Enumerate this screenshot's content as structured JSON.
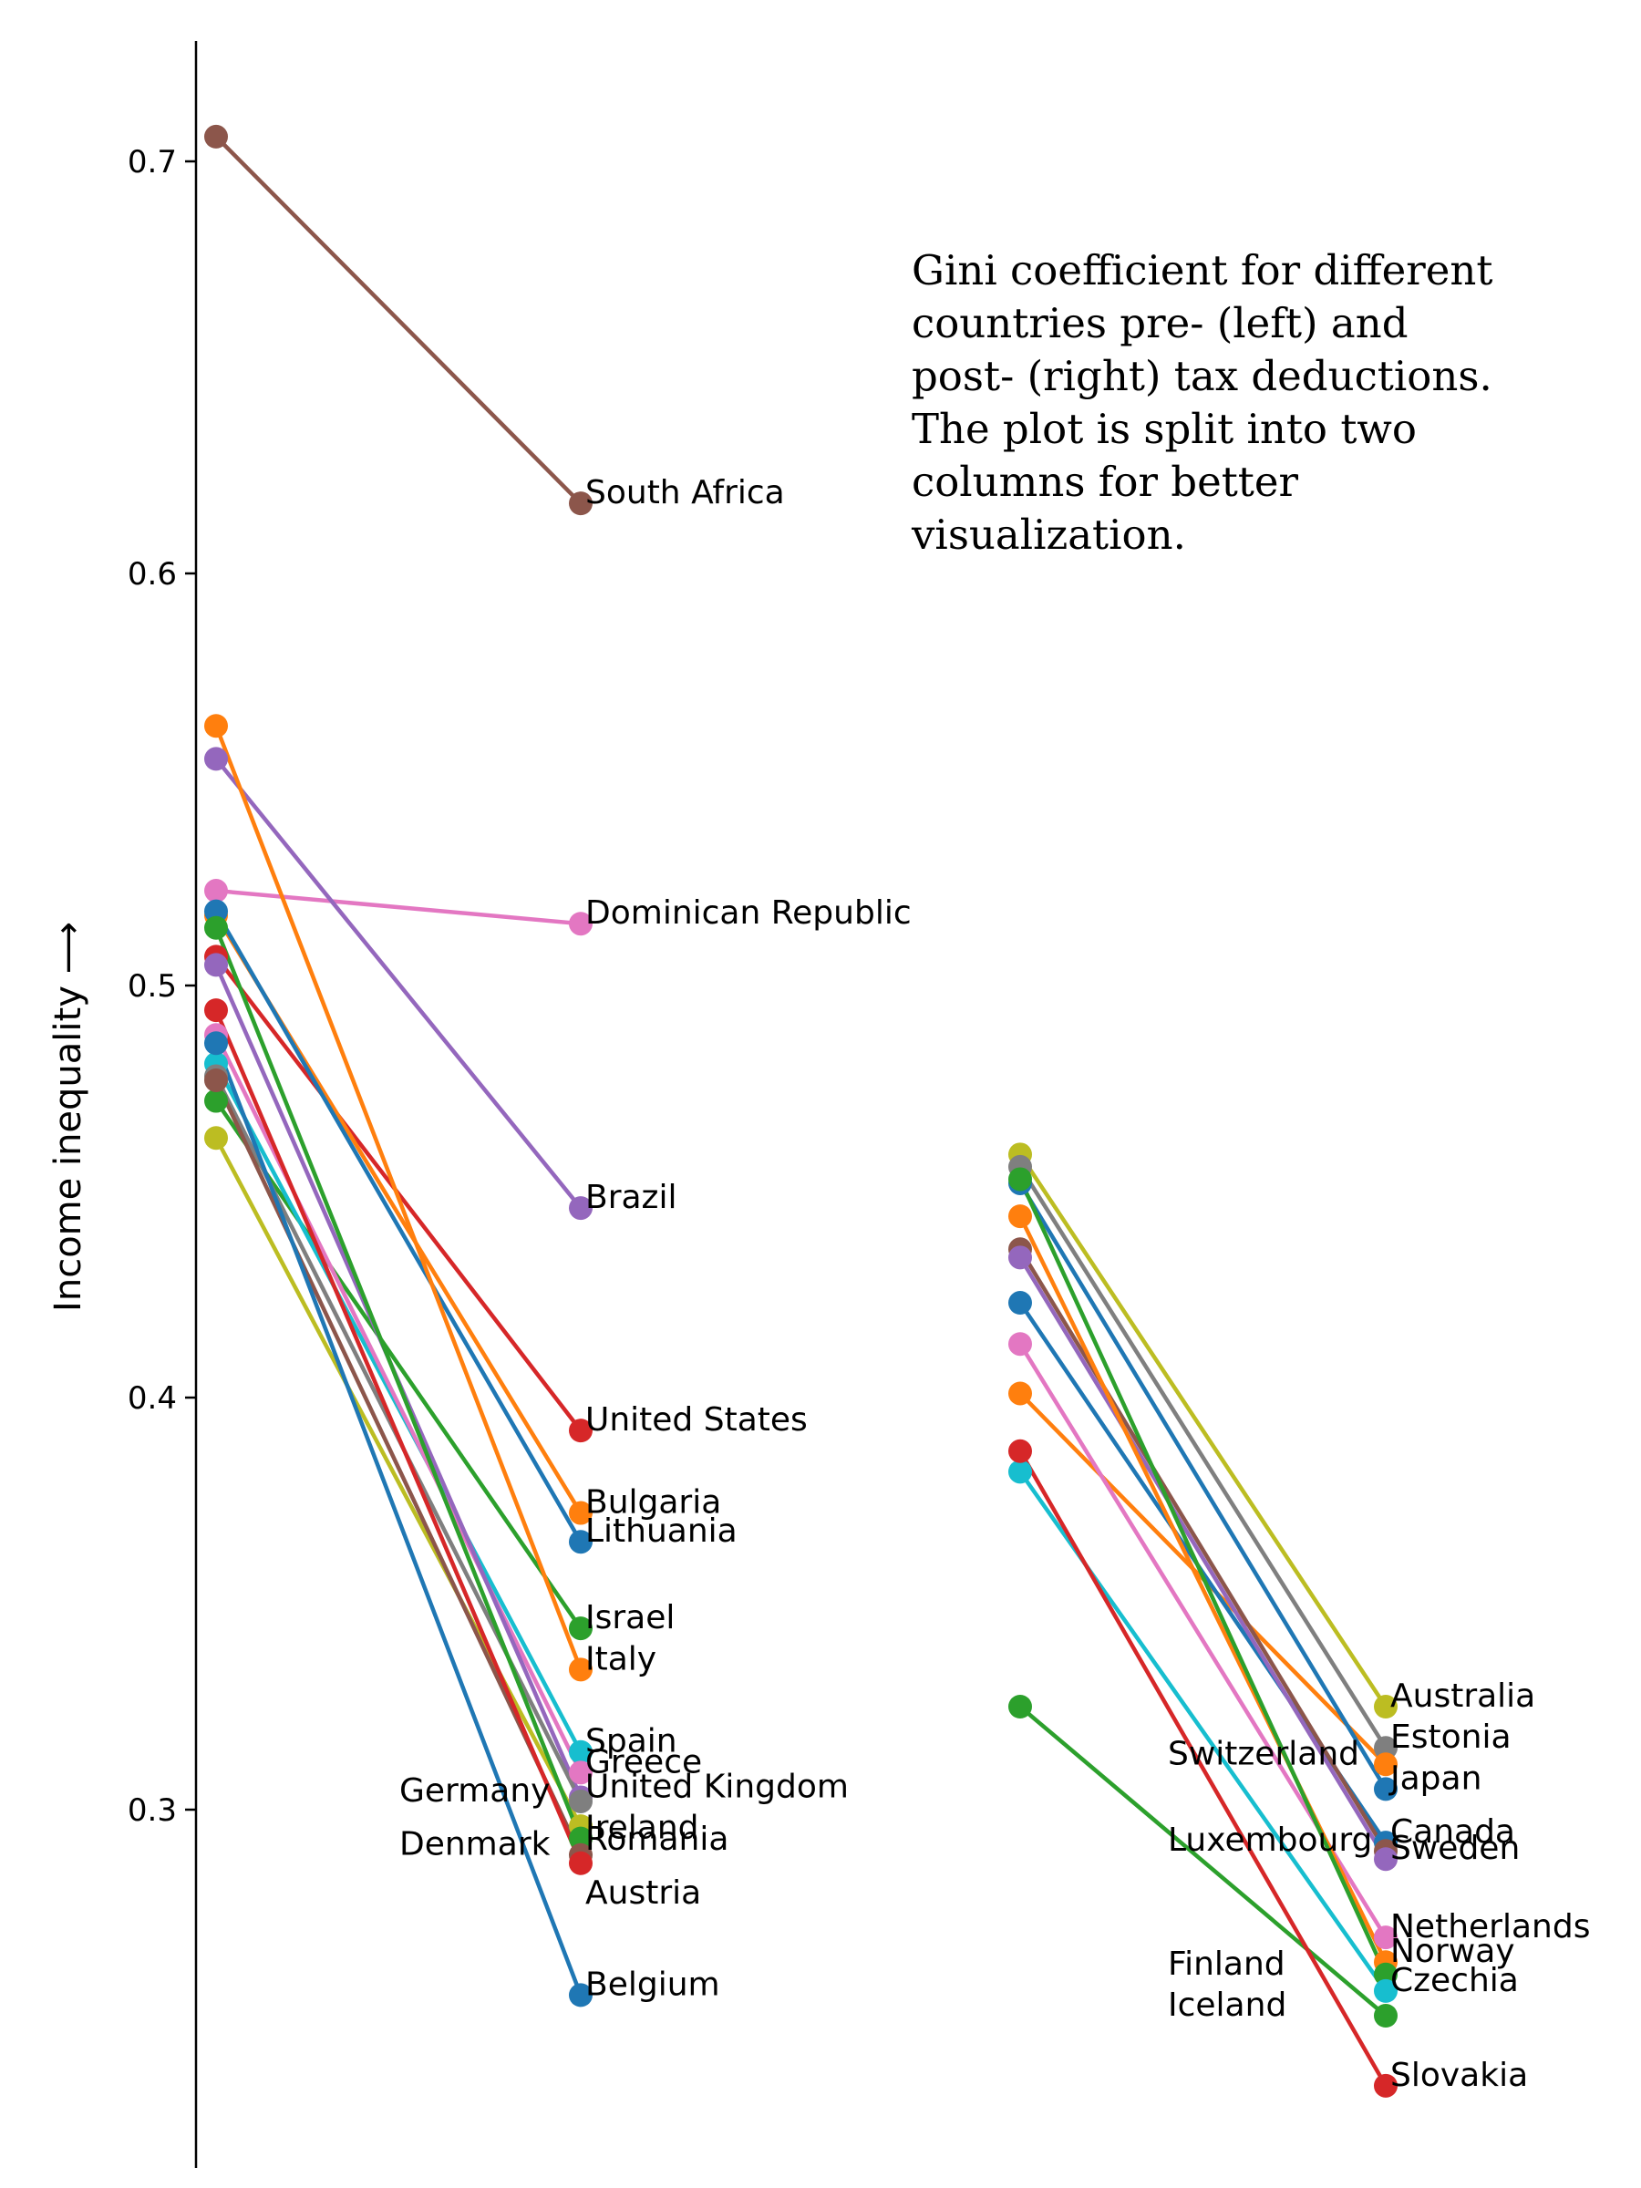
{
  "chart_data": {
    "type": "line",
    "ylabel": "Income inequality ⟶",
    "yticks": [
      0.3,
      0.4,
      0.5,
      0.6,
      0.7
    ],
    "ylim": [
      0.22,
      0.73
    ],
    "annotation": [
      "Gini coefficient for different",
      "countries pre- (left) and",
      "post- (right) tax deductions.",
      "The plot is split into two",
      "columns for better",
      "visualization."
    ],
    "groups": [
      {
        "side": "left",
        "series": [
          {
            "name": "South Africa",
            "pre": 0.706,
            "post": 0.617,
            "color": "#8c564b"
          },
          {
            "name": "Dominican Republic",
            "pre": 0.523,
            "post": 0.515,
            "color": "#e377c2"
          },
          {
            "name": "Brazil",
            "pre": 0.555,
            "post": 0.446,
            "color": "#9467bd"
          },
          {
            "name": "United States",
            "pre": 0.507,
            "post": 0.392,
            "color": "#d62728"
          },
          {
            "name": "Bulgaria",
            "pre": 0.517,
            "post": 0.372,
            "color": "#ff7f0e"
          },
          {
            "name": "Lithuania",
            "pre": 0.518,
            "post": 0.365,
            "color": "#1f77b4"
          },
          {
            "name": "Israel",
            "pre": 0.472,
            "post": 0.344,
            "color": "#2ca02c"
          },
          {
            "name": "Italy",
            "pre": 0.563,
            "post": 0.334,
            "color": "#ff7f0e"
          },
          {
            "name": "Spain",
            "pre": 0.481,
            "post": 0.314,
            "color": "#17becf"
          },
          {
            "name": "Greece",
            "pre": 0.488,
            "post": 0.309,
            "color": "#e377c2"
          },
          {
            "name": "United Kingdom",
            "pre": 0.505,
            "post": 0.303,
            "color": "#9467bd"
          },
          {
            "name": "Germany",
            "pre": 0.478,
            "post": 0.302,
            "color": "#7f7f7f"
          },
          {
            "name": "Romania",
            "pre": 0.463,
            "post": 0.296,
            "color": "#bcbd22"
          },
          {
            "name": "Ireland",
            "pre": 0.514,
            "post": 0.293,
            "color": "#2ca02c"
          },
          {
            "name": "Denmark",
            "pre": 0.477,
            "post": 0.289,
            "color": "#8c564b"
          },
          {
            "name": "Austria",
            "pre": 0.494,
            "post": 0.287,
            "color": "#d62728"
          },
          {
            "name": "Belgium",
            "pre": 0.486,
            "post": 0.255,
            "color": "#1f77b4"
          }
        ]
      },
      {
        "side": "right",
        "series": [
          {
            "name": "Australia",
            "pre": 0.459,
            "post": 0.325,
            "color": "#bcbd22"
          },
          {
            "name": "Estonia",
            "pre": 0.456,
            "post": 0.315,
            "color": "#7f7f7f"
          },
          {
            "name": "Switzerland",
            "pre": 0.401,
            "post": 0.311,
            "color": "#ff7f0e"
          },
          {
            "name": "Japan",
            "pre": 0.452,
            "post": 0.305,
            "color": "#1f77b4"
          },
          {
            "name": "Canada",
            "pre": 0.423,
            "post": 0.292,
            "color": "#1f77b4"
          },
          {
            "name": "Luxembourg",
            "pre": 0.436,
            "post": 0.29,
            "color": "#8c564b"
          },
          {
            "name": "Sweden",
            "pre": 0.434,
            "post": 0.288,
            "color": "#9467bd"
          },
          {
            "name": "Netherlands",
            "pre": 0.413,
            "post": 0.269,
            "color": "#e377c2"
          },
          {
            "name": "Norway",
            "pre": 0.444,
            "post": 0.263,
            "color": "#ff7f0e"
          },
          {
            "name": "Finland",
            "pre": 0.453,
            "post": 0.26,
            "color": "#2ca02c"
          },
          {
            "name": "Czechia",
            "pre": 0.382,
            "post": 0.256,
            "color": "#17becf"
          },
          {
            "name": "Iceland",
            "pre": 0.325,
            "post": 0.25,
            "color": "#2ca02c"
          },
          {
            "name": "Slovakia",
            "pre": 0.387,
            "post": 0.233,
            "color": "#d62728"
          }
        ]
      }
    ]
  }
}
